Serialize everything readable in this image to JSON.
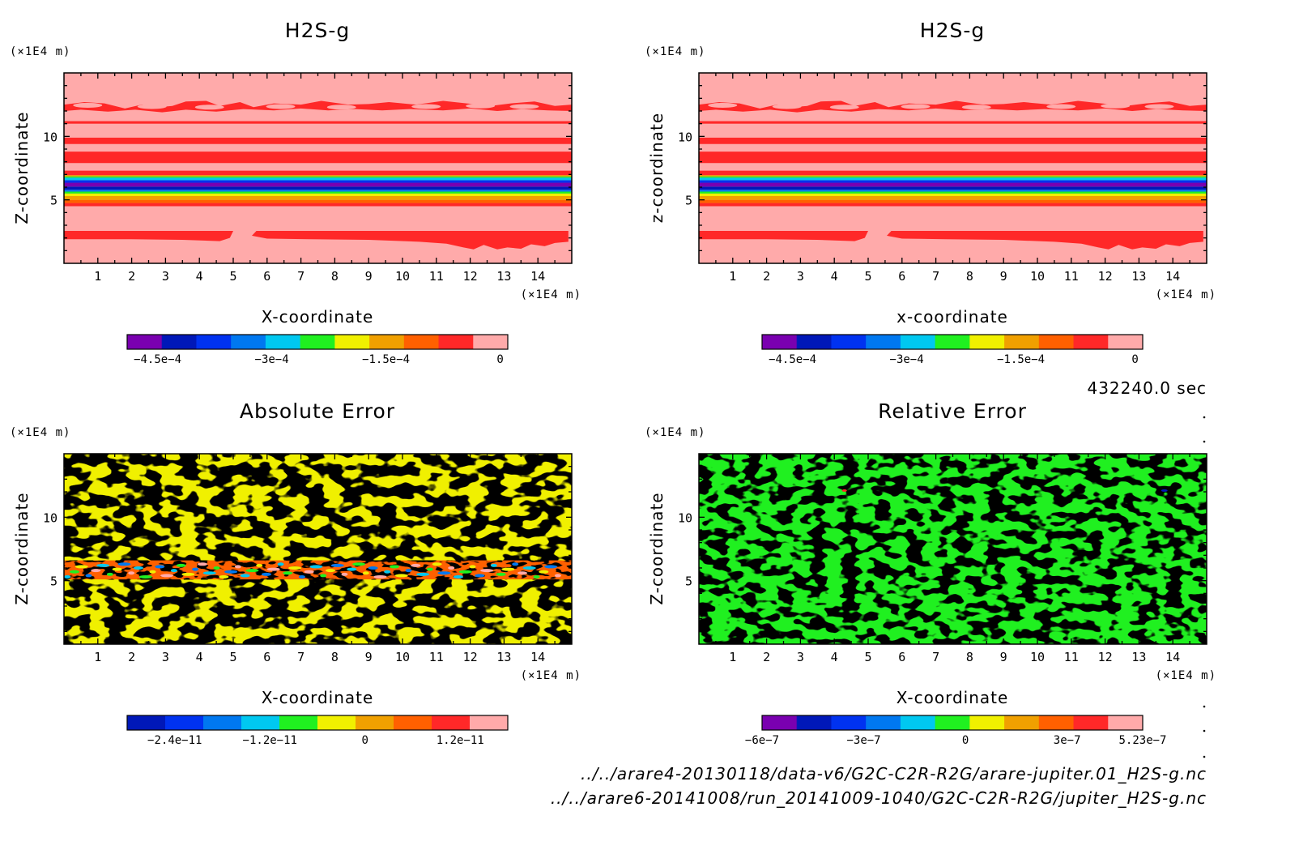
{
  "time_label": "432240.0 sec",
  "file_paths": [
    "../../arare4-20130118/data-v6/G2C-C2R-R2G/arare-jupiter.01_H2S-g.nc",
    "../../arare6-20141008/run_20141009-1040/G2C-C2R-R2G/jupiter_H2S-g.nc"
  ],
  "chart_data": [
    {
      "type": "heatmap",
      "title": "H2S-g",
      "xlabel": "X-coordinate",
      "ylabel": "Z-coordinate",
      "x_unit": "(×1E4 m)",
      "y_unit": "(×1E4 m)",
      "xlim": [
        0,
        15
      ],
      "ylim": [
        0,
        15
      ],
      "x_ticks": [
        "1",
        "2",
        "3",
        "4",
        "5",
        "6",
        "7",
        "8",
        "9",
        "10",
        "11",
        "12",
        "13",
        "14"
      ],
      "y_ticks": [
        "5",
        "10"
      ],
      "field": "h2s",
      "colors": [
        "#7a00b0",
        "#0018b8",
        "#0032f0",
        "#0078f0",
        "#00c8f0",
        "#20f020",
        "#f0f000",
        "#f0a000",
        "#ff6000",
        "#ff2828",
        "#ffaaaa"
      ],
      "colorbar_labels": [
        {
          "value": -0.00045,
          "label": "−4.5e−4"
        },
        {
          "value": -0.0003,
          "label": "−3e−4"
        },
        {
          "value": -0.00015,
          "label": "−1.5e−4"
        },
        {
          "value": 0,
          "label": "0"
        }
      ],
      "range": [
        -0.00049,
        1e-05
      ]
    },
    {
      "type": "heatmap",
      "title": "H2S-g",
      "xlabel": "x-coordinate",
      "ylabel": "z-coordinate",
      "x_unit": "(×1E4 m)",
      "y_unit": "(×1E4 m)",
      "xlim": [
        0,
        15
      ],
      "ylim": [
        0,
        15
      ],
      "x_ticks": [
        "1",
        "2",
        "3",
        "4",
        "5",
        "6",
        "7",
        "8",
        "9",
        "10",
        "11",
        "12",
        "13",
        "14"
      ],
      "y_ticks": [
        "5",
        "10"
      ],
      "field": "h2s",
      "colors": [
        "#7a00b0",
        "#0018b8",
        "#0032f0",
        "#0078f0",
        "#00c8f0",
        "#20f020",
        "#f0f000",
        "#f0a000",
        "#ff6000",
        "#ff2828",
        "#ffaaaa"
      ],
      "colorbar_labels": [
        {
          "value": -0.00045,
          "label": "−4.5e−4"
        },
        {
          "value": -0.0003,
          "label": "−3e−4"
        },
        {
          "value": -0.00015,
          "label": "−1.5e−4"
        },
        {
          "value": 0,
          "label": "0"
        }
      ],
      "range": [
        -0.00049,
        1e-05
      ]
    },
    {
      "type": "heatmap",
      "title": "Absolute Error",
      "xlabel": "X-coordinate",
      "ylabel": "Z-coordinate",
      "x_unit": "(×1E4 m)",
      "y_unit": "(×1E4 m)",
      "xlim": [
        0,
        15
      ],
      "ylim": [
        0,
        15
      ],
      "x_ticks": [
        "1",
        "2",
        "3",
        "4",
        "5",
        "6",
        "7",
        "8",
        "9",
        "10",
        "11",
        "12",
        "13",
        "14"
      ],
      "y_ticks": [
        "5",
        "10"
      ],
      "field": "abs_error",
      "colors": [
        "#0018b8",
        "#0032f0",
        "#0078f0",
        "#00c8f0",
        "#20f020",
        "#f0f000",
        "#f0a000",
        "#ff6000",
        "#ff2828",
        "#ffaaaa"
      ],
      "colorbar_labels": [
        {
          "value": -2.4e-11,
          "label": "−2.4e−11"
        },
        {
          "value": -1.2e-11,
          "label": "−1.2e−11"
        },
        {
          "value": 0,
          "label": "0"
        },
        {
          "value": 1.2e-11,
          "label": "1.2e−11"
        }
      ],
      "range": [
        -3e-11,
        1.8e-11
      ]
    },
    {
      "type": "heatmap",
      "title": "Relative Error",
      "xlabel": "X-coordinate",
      "ylabel": "Z-coordinate",
      "x_unit": "(×1E4 m)",
      "y_unit": "(×1E4 m)",
      "xlim": [
        0,
        15
      ],
      "ylim": [
        0,
        15
      ],
      "x_ticks": [
        "1",
        "2",
        "3",
        "4",
        "5",
        "6",
        "7",
        "8",
        "9",
        "10",
        "11",
        "12",
        "13",
        "14"
      ],
      "y_ticks": [
        "5",
        "10"
      ],
      "field": "rel_error",
      "colors": [
        "#7a00b0",
        "#0018b8",
        "#0032f0",
        "#0078f0",
        "#00c8f0",
        "#20f020",
        "#f0f000",
        "#f0a000",
        "#ff6000",
        "#ff2828",
        "#ffaaaa"
      ],
      "colorbar_labels": [
        {
          "value": -6e-07,
          "label": "−6e−7"
        },
        {
          "value": -3e-07,
          "label": "−3e−7"
        },
        {
          "value": 0,
          "label": "0"
        },
        {
          "value": 3e-07,
          "label": "3e−7"
        },
        {
          "value": 5.23e-07,
          "label": "5.23e−7"
        }
      ],
      "range": [
        -6e-07,
        5.23e-07
      ]
    }
  ]
}
